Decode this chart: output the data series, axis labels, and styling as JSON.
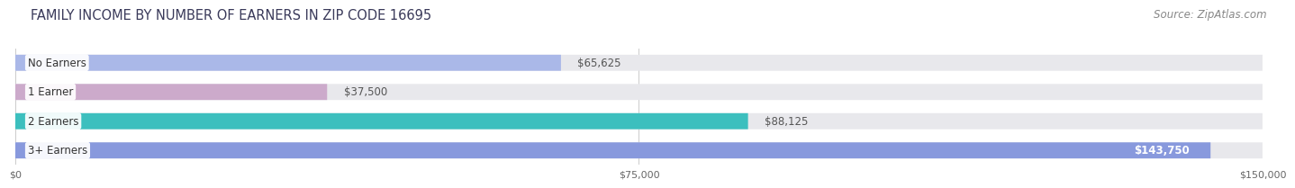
{
  "title": "FAMILY INCOME BY NUMBER OF EARNERS IN ZIP CODE 16695",
  "source": "Source: ZipAtlas.com",
  "categories": [
    "No Earners",
    "1 Earner",
    "2 Earners",
    "3+ Earners"
  ],
  "values": [
    65625,
    37500,
    88125,
    143750
  ],
  "bar_colors": [
    "#aab8e8",
    "#ccaacb",
    "#3cbfbe",
    "#8899dd"
  ],
  "label_values": [
    "$65,625",
    "$37,500",
    "$88,125",
    "$143,750"
  ],
  "xmax": 150000,
  "xticks": [
    0,
    75000,
    150000
  ],
  "xtick_labels": [
    "$0",
    "$75,000",
    "$150,000"
  ],
  "title_fontsize": 10.5,
  "source_fontsize": 8.5,
  "label_fontsize": 8.5,
  "cat_fontsize": 8.5,
  "background_color": "#ffffff",
  "bar_background": "#e8e8ec"
}
